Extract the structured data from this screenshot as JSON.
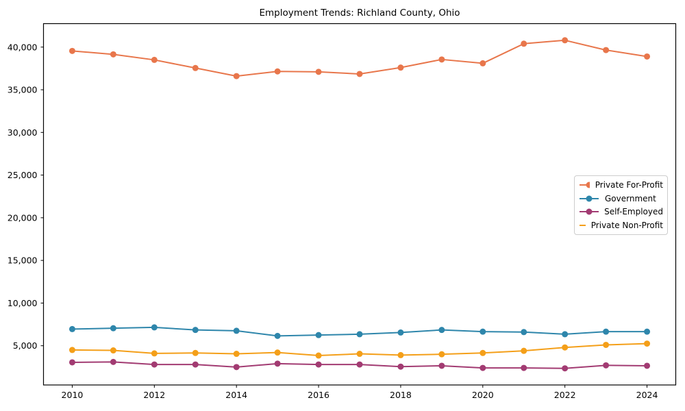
{
  "figure": {
    "background": "#ffffff",
    "axis_color": "#000000",
    "text_color": "#000000",
    "legend_border_color": "#cccccc"
  },
  "chart_data": {
    "type": "line",
    "title": "Employment Trends: Richland County, Ohio",
    "xlabel": "",
    "ylabel": "",
    "grid": false,
    "legend_position": "right-middle",
    "x": [
      2010,
      2011,
      2012,
      2013,
      2014,
      2015,
      2016,
      2017,
      2018,
      2019,
      2020,
      2021,
      2022,
      2023,
      2024
    ],
    "series": [
      {
        "name": "Private For-Profit",
        "color": "#E8764B",
        "values": [
          39550,
          39150,
          38500,
          37550,
          36600,
          37150,
          37100,
          36850,
          37600,
          38550,
          38100,
          40400,
          40800,
          39650,
          38900
        ]
      },
      {
        "name": "Government",
        "color": "#2E86AB",
        "values": [
          6950,
          7050,
          7150,
          6850,
          6750,
          6150,
          6250,
          6350,
          6550,
          6850,
          6650,
          6600,
          6350,
          6650,
          6650
        ]
      },
      {
        "name": "Self-Employed",
        "color": "#A23B72",
        "values": [
          3050,
          3100,
          2800,
          2800,
          2500,
          2900,
          2800,
          2800,
          2550,
          2650,
          2400,
          2400,
          2350,
          2700,
          2650
        ]
      },
      {
        "name": "Private Non-Profit",
        "color": "#F49F19",
        "values": [
          4500,
          4450,
          4100,
          4150,
          4050,
          4200,
          3850,
          4050,
          3900,
          4000,
          4150,
          4400,
          4800,
          5100,
          5250
        ]
      }
    ],
    "xticks": [
      2010,
      2012,
      2014,
      2016,
      2018,
      2020,
      2022,
      2024
    ],
    "xtick_labels": [
      "2010",
      "2012",
      "2014",
      "2016",
      "2018",
      "2020",
      "2022",
      "2024"
    ],
    "yticks": [
      5000,
      10000,
      15000,
      20000,
      25000,
      30000,
      35000,
      40000
    ],
    "ytick_labels": [
      "5,000",
      "10,000",
      "15,000",
      "20,000",
      "25,000",
      "30,000",
      "35,000",
      "40,000"
    ],
    "xlim": [
      2009.3,
      2024.7
    ],
    "ylim": [
      400,
      42750
    ]
  }
}
